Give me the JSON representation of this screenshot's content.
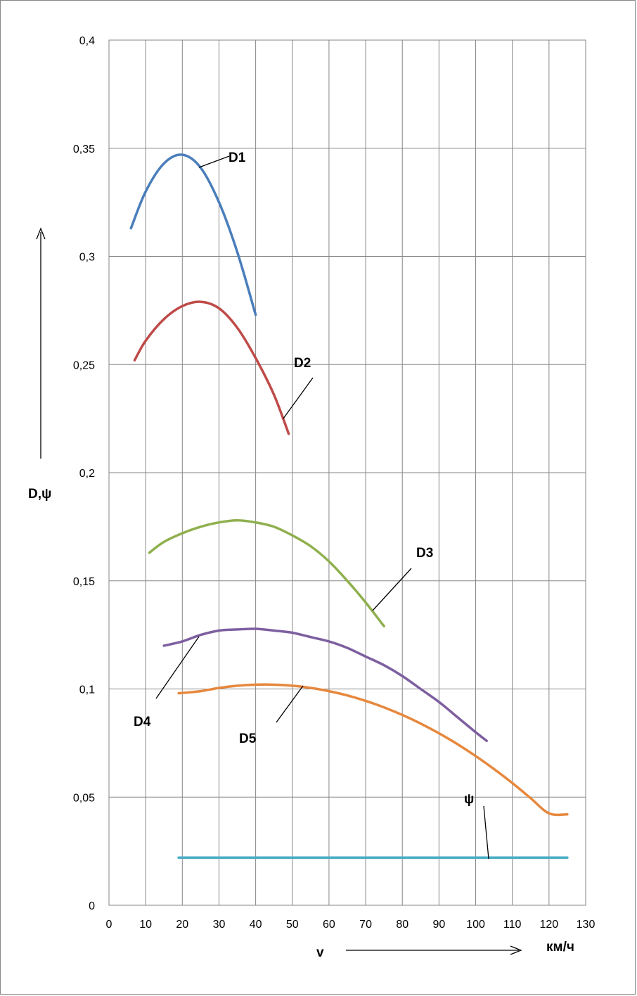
{
  "chart_data": {
    "type": "line",
    "ylabel": "D,ψ",
    "xlabel": "v",
    "xunit": "км/ч",
    "xlim": [
      0,
      130
    ],
    "ylim": [
      0,
      0.4
    ],
    "grid": true,
    "x_ticks": [
      "0",
      "10",
      "20",
      "30",
      "40",
      "50",
      "60",
      "70",
      "80",
      "90",
      "100",
      "110",
      "120",
      "130"
    ],
    "y_ticks": [
      "0",
      "0,05",
      "0,1",
      "0,15",
      "0,2",
      "0,25",
      "0,3",
      "0,35",
      "0,4"
    ],
    "series": [
      {
        "name": "D1",
        "color": "#4a7ebb",
        "x": [
          6,
          10,
          15,
          20,
          25,
          30,
          35,
          40
        ],
        "y": [
          0.313,
          0.33,
          0.343,
          0.347,
          0.341,
          0.325,
          0.302,
          0.273
        ]
      },
      {
        "name": "D2",
        "color": "#be4b48",
        "x": [
          7,
          10,
          15,
          20,
          25,
          30,
          35,
          40,
          45,
          49
        ],
        "y": [
          0.252,
          0.261,
          0.271,
          0.277,
          0.279,
          0.276,
          0.267,
          0.253,
          0.236,
          0.218
        ]
      },
      {
        "name": "D3",
        "color": "#8fb04e",
        "x": [
          11,
          15,
          20,
          25,
          30,
          35,
          40,
          45,
          50,
          55,
          60,
          65,
          70,
          75
        ],
        "y": [
          0.163,
          0.168,
          0.172,
          0.175,
          0.177,
          0.178,
          0.177,
          0.175,
          0.171,
          0.166,
          0.159,
          0.15,
          0.14,
          0.129
        ]
      },
      {
        "name": "D4",
        "color": "#7d5fa0",
        "x": [
          15,
          20,
          25,
          30,
          35,
          40,
          45,
          50,
          55,
          60,
          65,
          70,
          75,
          80,
          85,
          90,
          95,
          100,
          103
        ],
        "y": [
          0.12,
          0.122,
          0.125,
          0.127,
          0.1275,
          0.1278,
          0.127,
          0.126,
          0.124,
          0.122,
          0.119,
          0.115,
          0.111,
          0.106,
          0.1,
          0.094,
          0.087,
          0.08,
          0.076
        ]
      },
      {
        "name": "D5",
        "color": "#e6883e",
        "x": [
          19,
          25,
          30,
          35,
          40,
          45,
          50,
          55,
          60,
          65,
          70,
          75,
          80,
          85,
          90,
          95,
          100,
          105,
          110,
          115,
          120,
          125
        ],
        "y": [
          0.098,
          0.099,
          0.1005,
          0.1015,
          0.102,
          0.102,
          0.1015,
          0.1005,
          0.099,
          0.097,
          0.0945,
          0.0915,
          0.088,
          0.084,
          0.0795,
          0.0745,
          0.069,
          0.063,
          0.0565,
          0.0495,
          0.0425,
          0.042
        ]
      },
      {
        "name": "ψ",
        "color": "#4bacc6",
        "x": [
          19,
          125
        ],
        "y": [
          0.022,
          0.022
        ]
      }
    ]
  }
}
